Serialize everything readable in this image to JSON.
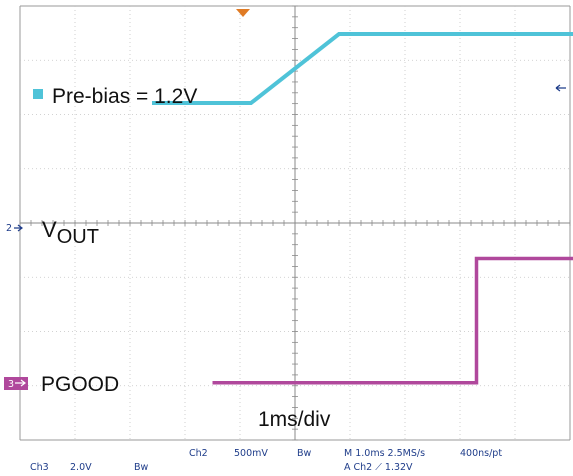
{
  "chart_data": {
    "type": "line",
    "annotations": {
      "prebias": "Pre-bias = 1.2V",
      "timebase": "1ms/div"
    },
    "series": [
      {
        "name": "VOUT",
        "label_main": "V",
        "label_sub": "OUT",
        "channel": "2",
        "color": "#4fc3d8",
        "points": [
          [
            -2.6,
            0
          ],
          [
            -0.8,
            0
          ],
          [
            0.8,
            1.25
          ],
          [
            7.0,
            1.25
          ]
        ]
      },
      {
        "name": "PGOOD",
        "channel": "3",
        "color": "#b0489c",
        "points": [
          [
            -1.5,
            0
          ],
          [
            3.3,
            0
          ],
          [
            3.3,
            1.0
          ],
          [
            7.0,
            1.0
          ]
        ]
      }
    ],
    "status_bar": {
      "ch2": "Ch2",
      "ch2_scale": "500mV",
      "bw_top": "Bw",
      "timebase": "M 1.0ms 2.5MS/s",
      "resolution": "400ns/pt",
      "ch3": "Ch3",
      "ch3_scale": "2.0V",
      "bw_bottom": "Bw",
      "trigger": "A  Ch2  ⟋  1.32V"
    },
    "trigger_marker_color": "#e07b24",
    "grid": true
  }
}
